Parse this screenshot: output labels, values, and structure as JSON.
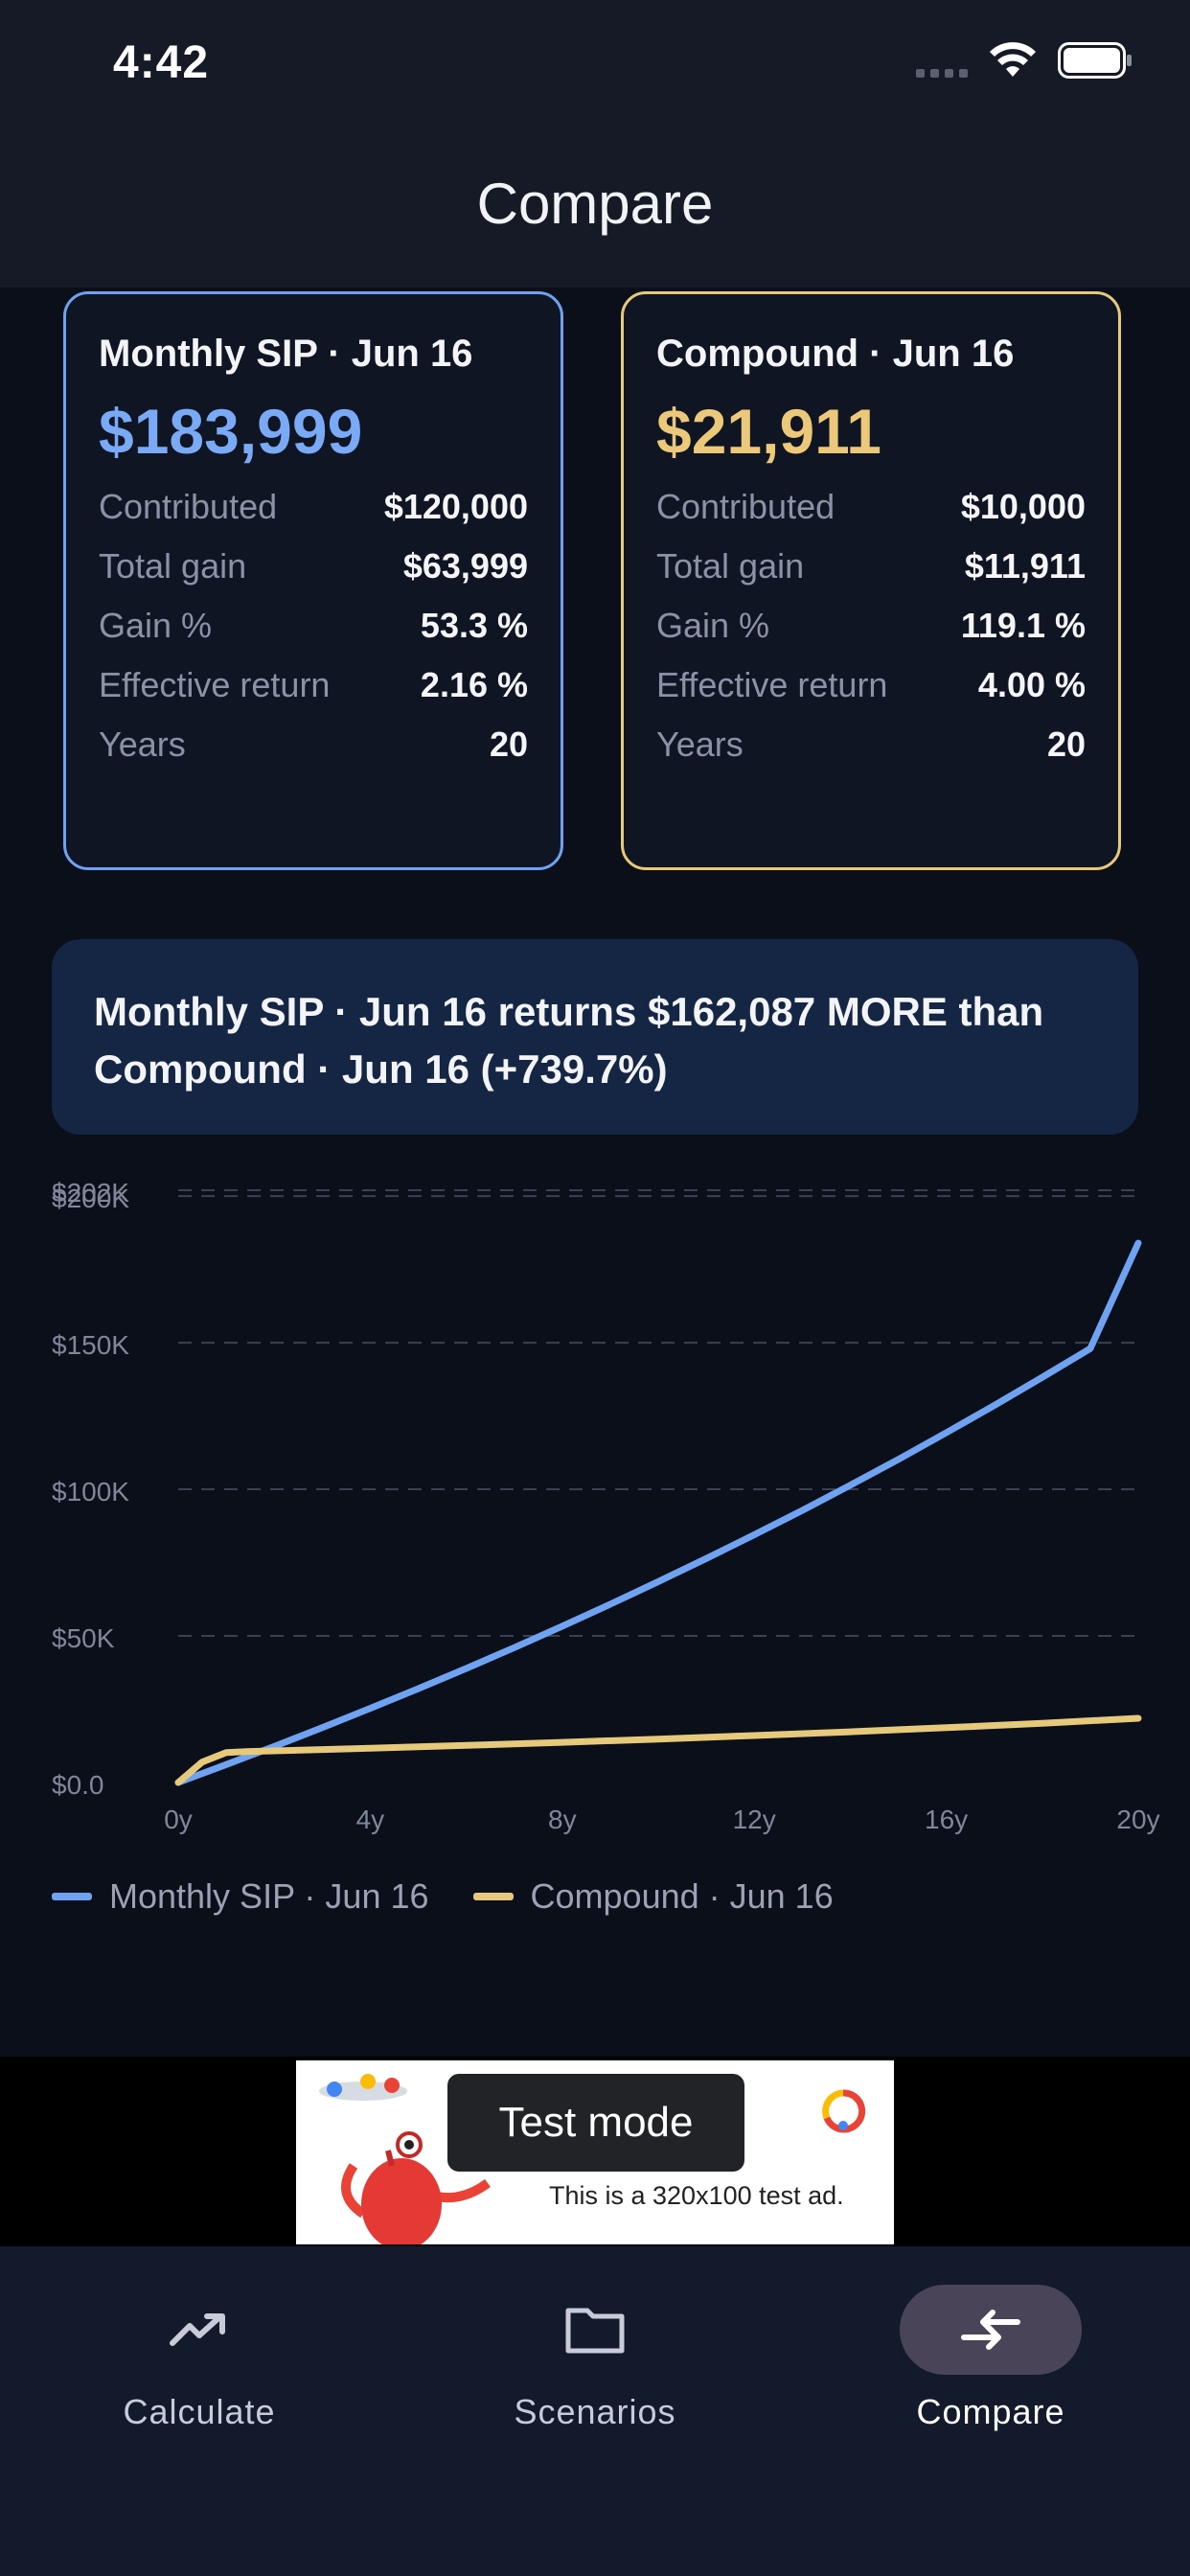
{
  "status_bar": {
    "time": "4:42"
  },
  "header": {
    "title": "Compare"
  },
  "cards": [
    {
      "title": "Monthly SIP · Jun 16",
      "total": "$183,999",
      "color": "#7aaaf6",
      "stats": [
        {
          "label": "Contributed",
          "value": "$120,000"
        },
        {
          "label": "Total gain",
          "value": "$63,999"
        },
        {
          "label": "Gain %",
          "value": "53.3 %"
        },
        {
          "label": "Effective return",
          "value": "2.16 %"
        },
        {
          "label": "Years",
          "value": "20"
        }
      ]
    },
    {
      "title": "Compound · Jun 16",
      "total": "$21,911",
      "color": "#ecc87a",
      "stats": [
        {
          "label": "Contributed",
          "value": "$10,000"
        },
        {
          "label": "Total gain",
          "value": "$11,911"
        },
        {
          "label": "Gain %",
          "value": "119.1 %"
        },
        {
          "label": "Effective return",
          "value": "4.00 %"
        },
        {
          "label": "Years",
          "value": "20"
        }
      ]
    }
  ],
  "banner": {
    "text": "Monthly SIP · Jun 16 returns $162,087 MORE than Compound · Jun 16 (+739.7%)"
  },
  "chart_data": {
    "type": "line",
    "x_tick_labels": [
      "0y",
      "4y",
      "8y",
      "12y",
      "16y",
      "20y"
    ],
    "x_ticks": [
      0,
      4,
      8,
      12,
      16,
      20
    ],
    "y_tick_labels": [
      "$0.0",
      "$50K",
      "$100K",
      "$150K",
      "$200K",
      "$202K"
    ],
    "y_ticks": [
      0,
      50000,
      100000,
      150000,
      200000,
      202000
    ],
    "xlim": [
      0,
      20
    ],
    "ylim": [
      0,
      202000
    ],
    "grid": true,
    "legend_position": "bottom-left",
    "series": [
      {
        "name": "Monthly SIP · Jun 16",
        "color": "#6fa3f2",
        "x": [
          0,
          1,
          2,
          3,
          4,
          5,
          6,
          7,
          8,
          9,
          10,
          11,
          12,
          13,
          14,
          15,
          16,
          17,
          18,
          19,
          20
        ],
        "y": [
          0,
          6100,
          12300,
          18700,
          25300,
          32000,
          38900,
          46000,
          53300,
          60800,
          68500,
          76400,
          84500,
          92800,
          101400,
          110200,
          119300,
          128600,
          138200,
          148000,
          184000
        ]
      },
      {
        "name": "Compound · Jun 16",
        "color": "#e7c97c",
        "x": [
          0,
          0.5,
          1,
          1.5,
          2,
          4,
          6,
          8,
          10,
          12,
          14,
          16,
          18,
          20
        ],
        "y": [
          0,
          7000,
          10200,
          10600,
          10800,
          11700,
          12650,
          13700,
          14800,
          16000,
          17300,
          18700,
          20200,
          21900
        ]
      }
    ]
  },
  "ad": {
    "toast": "Test mode",
    "text": "This is a 320x100 test ad."
  },
  "nav": {
    "items": [
      {
        "label": "Calculate",
        "icon": "trending-up-icon"
      },
      {
        "label": "Scenarios",
        "icon": "folder-icon"
      },
      {
        "label": "Compare",
        "icon": "compare-arrows-icon"
      }
    ]
  }
}
